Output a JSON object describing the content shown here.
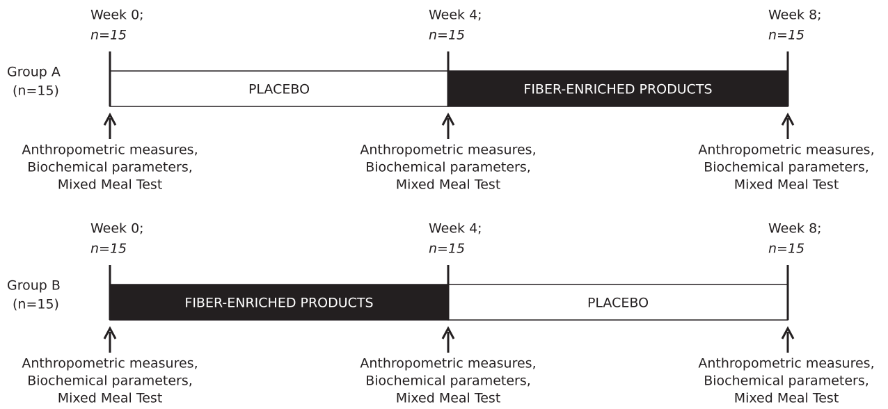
{
  "groups": [
    {
      "label": "Group A",
      "n": "(n=15)",
      "timepoints": [
        {
          "week": "Week 0;",
          "n": "n=15",
          "measures": [
            "Anthropometric measures,",
            "Biochemical parameters,",
            "Mixed Meal Test"
          ]
        },
        {
          "week": "Week 4;",
          "n": "n=15",
          "measures": [
            "Anthropometric measures,",
            "Biochemical parameters,",
            "Mixed Meal Test"
          ]
        },
        {
          "week": "Week 8;",
          "n": "n=15",
          "measures": [
            "Anthropometric measures,",
            "Biochemical parameters,",
            "Mixed Meal Test"
          ]
        }
      ],
      "periods": [
        {
          "label": "PLACEBO",
          "fill": "#ffffff",
          "text_color": "#231f20"
        },
        {
          "label": "FIBER-ENRICHED PRODUCTS",
          "fill": "#231f20",
          "text_color": "#ffffff"
        }
      ]
    },
    {
      "label": "Group B",
      "n": "(n=15)",
      "timepoints": [
        {
          "week": "Week 0;",
          "n": "n=15",
          "measures": [
            "Anthropometric measures,",
            "Biochemical parameters,",
            "Mixed Meal Test"
          ]
        },
        {
          "week": "Week 4;",
          "n": "n=15",
          "measures": [
            "Anthropometric measures,",
            "Biochemical parameters,",
            "Mixed Meal Test"
          ]
        },
        {
          "week": "Week 8;",
          "n": "n=15",
          "measures": [
            "Anthropometric measures,",
            "Biochemical parameters,",
            "Mixed Meal Test"
          ]
        }
      ],
      "periods": [
        {
          "label": "FIBER-ENRICHED PRODUCTS",
          "fill": "#231f20",
          "text_color": "#ffffff"
        },
        {
          "label": "PLACEBO",
          "fill": "#ffffff",
          "text_color": "#231f20"
        }
      ]
    }
  ]
}
